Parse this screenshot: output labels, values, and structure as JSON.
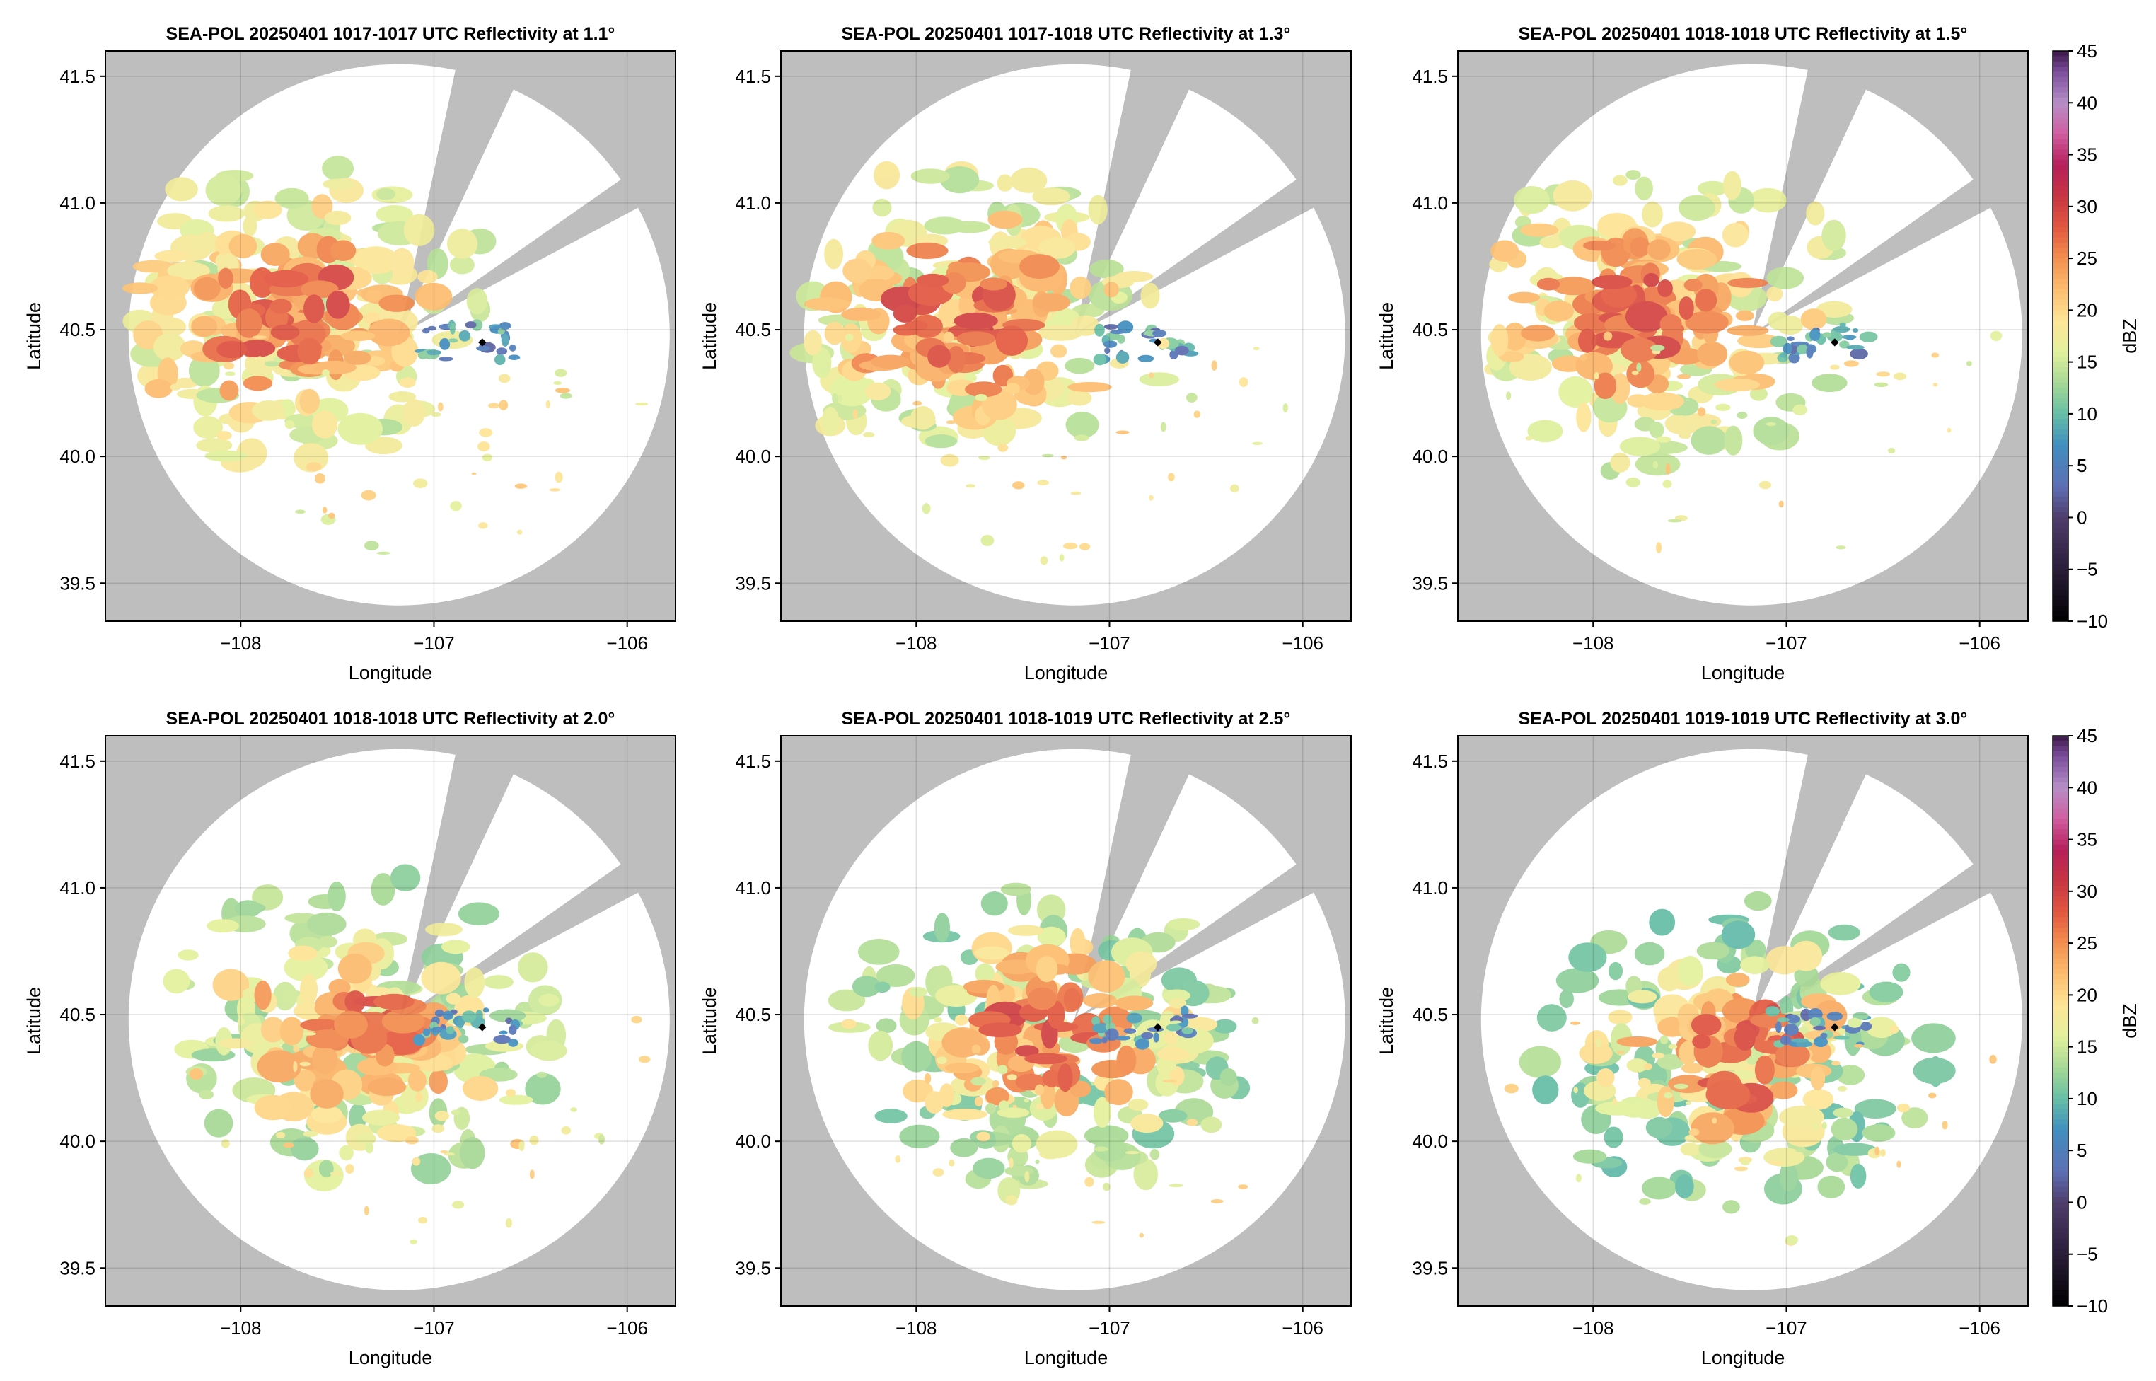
{
  "figure": {
    "colorbar_label": "dBZ",
    "colorbar_ticks": [
      "45",
      "40",
      "35",
      "30",
      "25",
      "20",
      "15",
      "10",
      "5",
      "0",
      "−5",
      "−10"
    ],
    "colorbar_range": [
      -10,
      45
    ],
    "colorbar_colormap": "Spectral_r (black-purple low, blue-green-yellow-orange-red-pink-purple high)",
    "masked_color": "#bebebe"
  },
  "chart_data": [
    {
      "type": "heatmap",
      "title": "SEA-POL 20250401 1017-1017 UTC Reflectivity at 1.1°",
      "xlabel": "Longitude",
      "ylabel": "Latitude",
      "xlim": [
        -108.7,
        -105.75
      ],
      "ylim": [
        39.35,
        41.6
      ],
      "xticks": [
        "−108",
        "−107",
        "−106"
      ],
      "yticks": [
        "41.5",
        "41.0",
        "40.5",
        "40.0",
        "39.5"
      ],
      "elevation_deg": 1.1,
      "grid": true,
      "radar_center": [
        -107.18,
        40.48
      ],
      "marker": [
        -106.75,
        40.45
      ],
      "blocked_sectors": [
        [
          12,
          25
        ],
        [
          55,
          62
        ]
      ],
      "echo_bands_dBZ": [
        16,
        20,
        24,
        28
      ],
      "storm_core": [
        -107.9,
        40.55
      ]
    },
    {
      "type": "heatmap",
      "title": "SEA-POL 20250401 1017-1018 UTC Reflectivity at 1.3°",
      "xlabel": "Longitude",
      "ylabel": "Latitude",
      "xlim": [
        -108.7,
        -105.75
      ],
      "ylim": [
        39.35,
        41.6
      ],
      "xticks": [
        "−108",
        "−107",
        "−106"
      ],
      "yticks": [
        "41.5",
        "41.0",
        "40.5",
        "40.0",
        "39.5"
      ],
      "elevation_deg": 1.3,
      "grid": true,
      "radar_center": [
        -107.18,
        40.48
      ],
      "marker": [
        -106.75,
        40.45
      ],
      "blocked_sectors": [
        [
          12,
          25
        ],
        [
          55,
          62
        ]
      ],
      "echo_bands_dBZ": [
        16,
        20,
        24,
        28
      ],
      "storm_core": [
        -107.9,
        40.55
      ]
    },
    {
      "type": "heatmap",
      "title": "SEA-POL 20250401 1018-1018 UTC Reflectivity at 1.5°",
      "xlabel": "Longitude",
      "ylabel": "Latitude",
      "xlim": [
        -108.7,
        -105.75
      ],
      "ylim": [
        39.35,
        41.6
      ],
      "xticks": [
        "−108",
        "−107",
        "−106"
      ],
      "yticks": [
        "41.5",
        "41.0",
        "40.5",
        "40.0",
        "39.5"
      ],
      "elevation_deg": 1.5,
      "grid": true,
      "radar_center": [
        -107.18,
        40.48
      ],
      "marker": [
        -106.75,
        40.45
      ],
      "blocked_sectors": [
        [
          12,
          25
        ],
        [
          55,
          62
        ]
      ],
      "echo_bands_dBZ": [
        16,
        20,
        24,
        28
      ],
      "storm_core": [
        -107.85,
        40.55
      ]
    },
    {
      "type": "heatmap",
      "title": "SEA-POL 20250401 1018-1018 UTC Reflectivity at 2.0°",
      "xlabel": "Longitude",
      "ylabel": "Latitude",
      "xlim": [
        -108.7,
        -105.75
      ],
      "ylim": [
        39.35,
        41.6
      ],
      "xticks": [
        "−108",
        "−107",
        "−106"
      ],
      "yticks": [
        "41.5",
        "41.0",
        "40.5",
        "40.0",
        "39.5"
      ],
      "elevation_deg": 2.0,
      "grid": true,
      "radar_center": [
        -107.18,
        40.48
      ],
      "marker": [
        -106.75,
        40.45
      ],
      "blocked_sectors": [
        [
          12,
          25
        ],
        [
          55,
          62
        ]
      ],
      "echo_bands_dBZ": [
        14,
        18,
        22,
        27
      ],
      "storm_core": [
        -107.4,
        40.45
      ]
    },
    {
      "type": "heatmap",
      "title": "SEA-POL 20250401 1018-1019 UTC Reflectivity at 2.5°",
      "xlabel": "Longitude",
      "ylabel": "Latitude",
      "xlim": [
        -108.7,
        -105.75
      ],
      "ylim": [
        39.35,
        41.6
      ],
      "xticks": [
        "−108",
        "−107",
        "−106"
      ],
      "yticks": [
        "41.5",
        "41.0",
        "40.5",
        "40.0",
        "39.5"
      ],
      "elevation_deg": 2.5,
      "grid": true,
      "radar_center": [
        -107.18,
        40.48
      ],
      "marker": [
        -106.75,
        40.45
      ],
      "blocked_sectors": [
        [
          12,
          25
        ],
        [
          55,
          62
        ]
      ],
      "echo_bands_dBZ": [
        13,
        18,
        23,
        28
      ],
      "storm_core": [
        -107.35,
        40.4
      ]
    },
    {
      "type": "heatmap",
      "title": "SEA-POL 20250401 1019-1019 UTC Reflectivity at 3.0°",
      "xlabel": "Longitude",
      "ylabel": "Latitude",
      "xlim": [
        -108.7,
        -105.75
      ],
      "ylim": [
        39.35,
        41.6
      ],
      "xticks": [
        "−108",
        "−107",
        "−106"
      ],
      "yticks": [
        "41.5",
        "41.0",
        "40.5",
        "40.0",
        "39.5"
      ],
      "elevation_deg": 3.0,
      "grid": true,
      "radar_center": [
        -107.18,
        40.48
      ],
      "marker": [
        -106.75,
        40.45
      ],
      "blocked_sectors": [
        [
          12,
          25
        ],
        [
          55,
          62
        ]
      ],
      "echo_bands_dBZ": [
        12,
        17,
        23,
        28
      ],
      "storm_core": [
        -107.25,
        40.35
      ]
    }
  ]
}
